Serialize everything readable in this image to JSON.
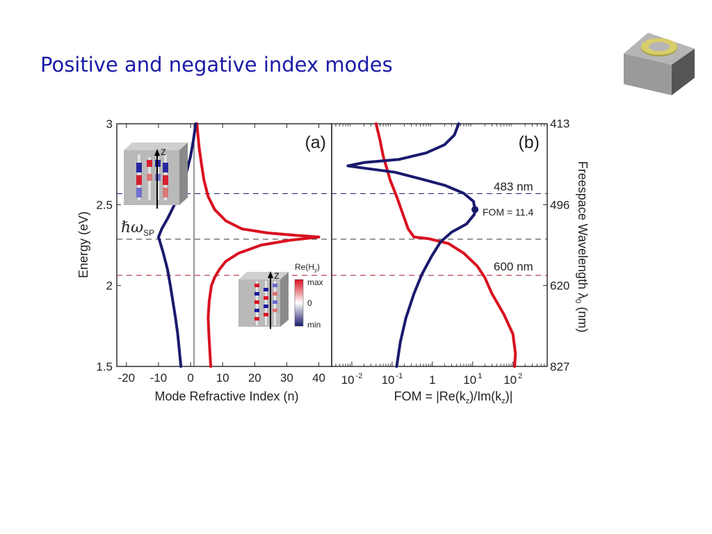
{
  "slide": {
    "title": "Positive and negative index modes",
    "icon": "gray-cube-with-gold-ring-icon"
  },
  "colors": {
    "title": "#1a1aa6",
    "positive_mode": "#d9101f",
    "negative_mode": "#1a1a6e",
    "dash_sp": "#333333",
    "dash_483": "#1a1a6e",
    "dash_600": "#a01020"
  },
  "chart_data": [
    {
      "panel": "(a)",
      "type": "line",
      "xlabel": "Mode Refractive Index (n)",
      "ylabel": "Energy (eV)",
      "xlim": [
        -23,
        44
      ],
      "ylim": [
        1.5,
        3
      ],
      "x_ticks": [
        "-20",
        "-10",
        "0",
        "10",
        "20",
        "30",
        "40"
      ],
      "y_ticks": [
        "1.5",
        "2",
        "2.5",
        "3"
      ],
      "hline_labels": {
        "sp": "ℏω",
        "sp_sub": "SP"
      },
      "series": [
        {
          "color": "#d9101f",
          "points": [
            [
              6.3,
              1.5
            ],
            [
              6.0,
              1.6
            ],
            [
              5.7,
              1.7
            ],
            [
              5.5,
              1.8
            ],
            [
              5.8,
              1.9
            ],
            [
              6.5,
              2.0
            ],
            [
              7.5,
              2.05
            ],
            [
              9,
              2.1
            ],
            [
              11,
              2.15
            ],
            [
              15,
              2.2
            ],
            [
              22,
              2.25
            ],
            [
              31,
              2.28
            ],
            [
              40,
              2.3
            ],
            [
              33,
              2.31
            ],
            [
              24,
              2.325
            ],
            [
              16,
              2.35
            ],
            [
              11,
              2.4
            ],
            [
              7.5,
              2.47
            ],
            [
              5.5,
              2.55
            ],
            [
              4.2,
              2.65
            ],
            [
              3.4,
              2.75
            ],
            [
              2.7,
              2.85
            ],
            [
              2.2,
              2.95
            ],
            [
              2.0,
              3.0
            ]
          ]
        },
        {
          "color": "#1a1a6e",
          "points": [
            [
              -3,
              1.5
            ],
            [
              -3.5,
              1.6
            ],
            [
              -4,
              1.7
            ],
            [
              -4.7,
              1.8
            ],
            [
              -5.5,
              1.9
            ],
            [
              -6.3,
              2.0
            ],
            [
              -7.2,
              2.1
            ],
            [
              -8.5,
              2.2
            ],
            [
              -10,
              2.3
            ],
            [
              -9,
              2.35
            ],
            [
              -7,
              2.42
            ],
            [
              -5,
              2.5
            ],
            [
              -3.5,
              2.57
            ],
            [
              -2,
              2.65
            ],
            [
              -1,
              2.72
            ],
            [
              0,
              2.8
            ],
            [
              0.9,
              2.9
            ],
            [
              1.6,
              3.0
            ]
          ]
        }
      ],
      "insets": [
        {
          "label": "z"
        },
        {
          "label": "z",
          "colorbar_title": "Re(H",
          "colorbar_title_sub": "y",
          "colorbar_title_end": ")",
          "colorbar_max": "max",
          "colorbar_mid": "0",
          "colorbar_min": "min"
        }
      ],
      "panel_label": "(a)"
    },
    {
      "panel": "(b)",
      "type": "line",
      "xlabel": "FOM = |Re(k",
      "xlabel_sub1": "z",
      "xlabel_mid": ")/Im(k",
      "xlabel_sub2": "z",
      "xlabel_end": ")|",
      "x_scale": "log",
      "xlim_log10": [
        -2.5,
        2.85
      ],
      "ylim": [
        1.5,
        3
      ],
      "x_ticks": [
        {
          "base": "10",
          "exp": "-2"
        },
        {
          "base": "10",
          "exp": "-1"
        },
        {
          "base": "1",
          "exp": ""
        },
        {
          "base": "10",
          "exp": "1"
        },
        {
          "base": "10",
          "exp": "2"
        }
      ],
      "right_axis": {
        "label": "Freespace Wavelength λ",
        "label_sub": "0",
        "label_end": " (nm)",
        "ticks": [
          "413",
          "496",
          "620",
          "827"
        ]
      },
      "series": [
        {
          "color": "#d9101f",
          "points": [
            [
              110,
              1.5
            ],
            [
              115,
              1.58
            ],
            [
              100,
              1.7
            ],
            [
              60,
              1.82
            ],
            [
              30,
              1.95
            ],
            [
              20,
              2.05
            ],
            [
              13,
              2.12
            ],
            [
              6,
              2.2
            ],
            [
              2.5,
              2.26
            ],
            [
              0.8,
              2.29
            ],
            [
              0.35,
              2.3
            ],
            [
              0.25,
              2.35
            ],
            [
              0.18,
              2.45
            ],
            [
              0.13,
              2.55
            ],
            [
              0.09,
              2.65
            ],
            [
              0.06,
              2.8
            ],
            [
              0.05,
              2.9
            ],
            [
              0.04,
              3.0
            ]
          ]
        },
        {
          "color": "#1a1a6e",
          "points": [
            [
              0.13,
              1.5
            ],
            [
              0.16,
              1.65
            ],
            [
              0.22,
              1.8
            ],
            [
              0.35,
              1.95
            ],
            [
              0.55,
              2.07
            ],
            [
              0.95,
              2.18
            ],
            [
              1.6,
              2.27
            ],
            [
              3,
              2.33
            ],
            [
              7,
              2.38
            ],
            [
              11,
              2.44
            ],
            [
              11.4,
              2.47
            ],
            [
              10.5,
              2.52
            ],
            [
              6,
              2.57
            ],
            [
              2,
              2.62
            ],
            [
              0.5,
              2.66
            ],
            [
              0.12,
              2.7
            ],
            [
              0.015,
              2.73
            ],
            [
              0.008,
              2.74
            ],
            [
              0.02,
              2.76
            ],
            [
              0.15,
              2.78
            ],
            [
              0.7,
              2.82
            ],
            [
              2,
              2.87
            ],
            [
              3.5,
              2.93
            ],
            [
              4.5,
              3.0
            ]
          ]
        }
      ],
      "marker": {
        "x": 11.4,
        "y": 2.47,
        "label": "FOM = 11.4"
      },
      "hlines": [
        {
          "y": 2.567,
          "label": "483 nm",
          "color": "#1a1a6e"
        },
        {
          "y": 2.293,
          "label": "",
          "color": "#333333"
        },
        {
          "y": 2.067,
          "label": "600 nm",
          "color": "#a01020"
        }
      ],
      "panel_label": "(b)"
    }
  ]
}
